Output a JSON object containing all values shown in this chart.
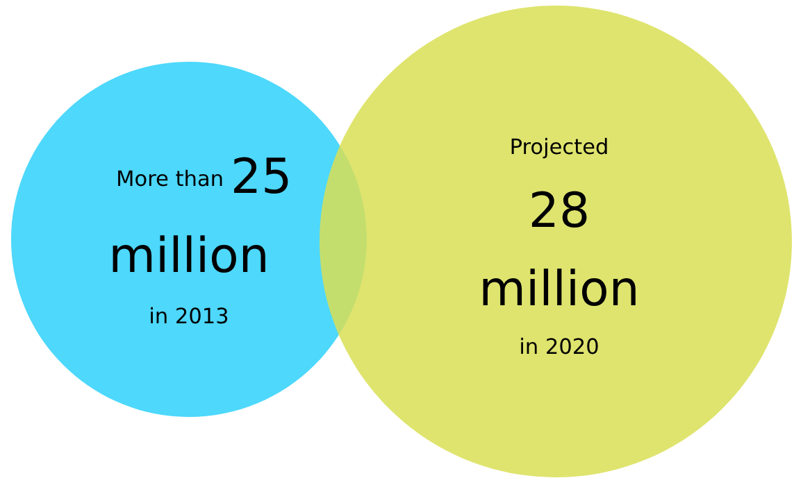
{
  "chart_data": {
    "type": "other",
    "categories": [
      "in 2013",
      "in 2020"
    ],
    "values": [
      25,
      28
    ],
    "data_labels": true,
    "colors": [
      "#4dd8fc",
      "#d9df55"
    ],
    "annotations": [
      "More than",
      "million",
      "Projected",
      "million"
    ]
  }
}
